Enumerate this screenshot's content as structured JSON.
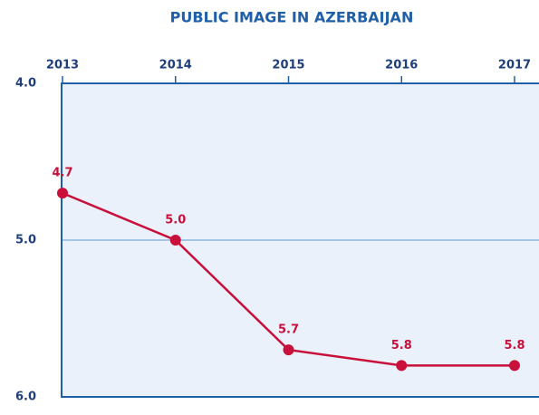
{
  "chart_data": {
    "type": "line",
    "title": "PUBLIC IMAGE IN AZERBAIJAN",
    "categories": [
      "2013",
      "2014",
      "2015",
      "2016",
      "2017"
    ],
    "series": [
      {
        "color": "#c8103a",
        "values": [
          4.7,
          5.0,
          5.7,
          5.8,
          5.8
        ],
        "value_labels": [
          "4.7",
          "5.0",
          "5.7",
          "5.8",
          "5.8"
        ]
      }
    ],
    "ylim": [
      6,
      4
    ],
    "yticks": [
      {
        "value": 4,
        "label": "4.0"
      },
      {
        "value": 5,
        "label": "5.0"
      },
      {
        "value": 6,
        "label": "6.0"
      }
    ],
    "grid": true
  }
}
